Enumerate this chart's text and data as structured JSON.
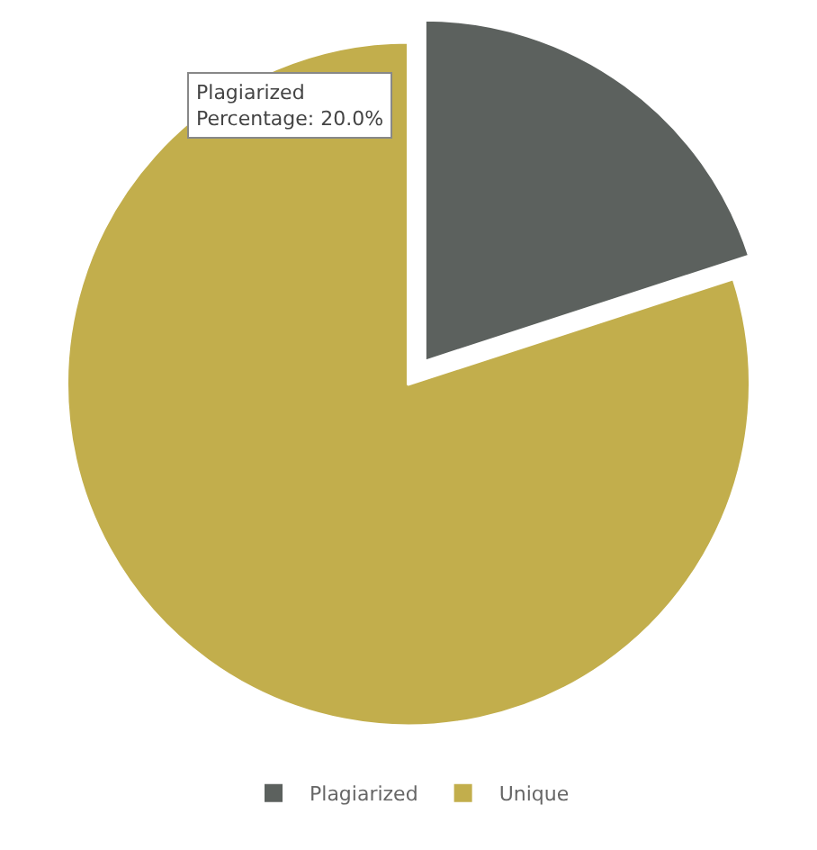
{
  "chart_data": {
    "type": "pie",
    "categories": [
      "Plagiarized",
      "Unique"
    ],
    "values": [
      20,
      80
    ],
    "colors": [
      "#5c615e",
      "#c2ae4c"
    ],
    "legend": "bottom",
    "annotations": [
      "Plagiarized\nPercentage: 20.0%"
    ]
  }
}
